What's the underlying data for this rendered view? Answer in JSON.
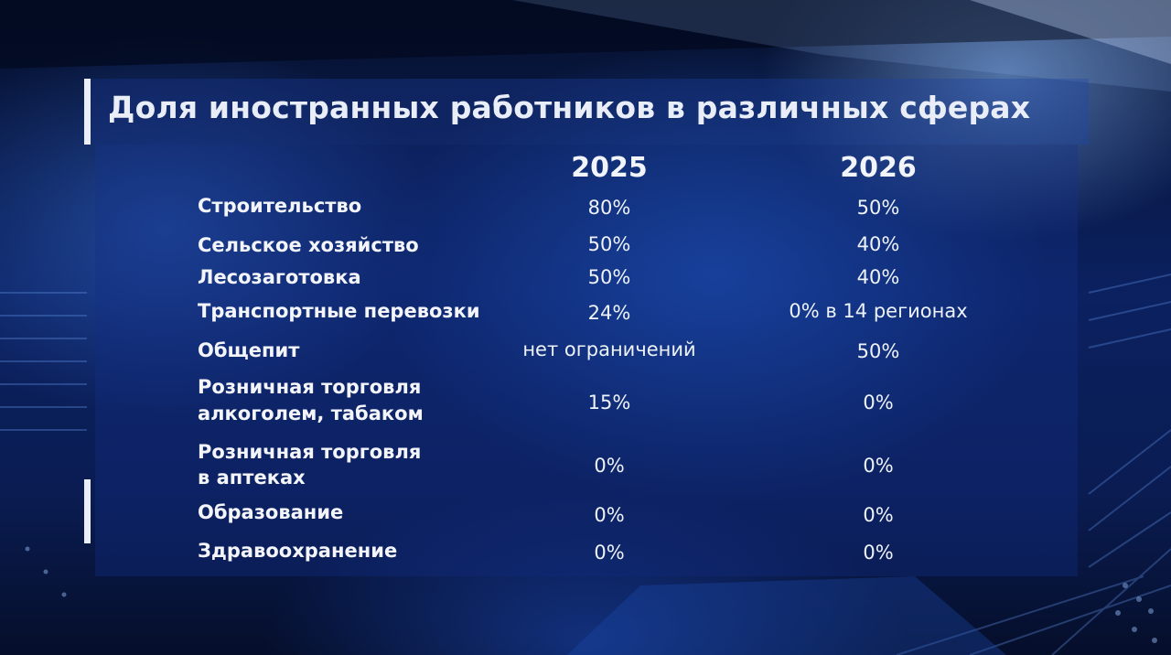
{
  "title": "Доля иностранных работников в различных сферах",
  "columns": [
    "2025",
    "2026"
  ],
  "rows": [
    {
      "label": "Строительство",
      "v2025": "80%",
      "v2026": "50%"
    },
    {
      "label": "Сельское хозяйство",
      "v2025": "50%",
      "v2026": "40%"
    },
    {
      "label": "Лесозаготовка",
      "v2025": "50%",
      "v2026": "40%"
    },
    {
      "label": "Транспортные перевозки",
      "v2025": "24%",
      "v2026": "0% в 14 регионах"
    },
    {
      "label": "Общепит",
      "v2025": "нет ограничений",
      "v2026": "50%"
    },
    {
      "label_lines": [
        "Розничная торговля",
        "алкоголем,  табаком"
      ],
      "v2025": "15%",
      "v2026": "0%"
    },
    {
      "label_lines": [
        "Розничная торговля",
        "в аптеках"
      ],
      "v2025": "0%",
      "v2026": "0%"
    },
    {
      "label": "Образование",
      "v2025": "0%",
      "v2026": "0%"
    },
    {
      "label": "Здравоохранение",
      "v2025": "0%",
      "v2026": "0%"
    }
  ],
  "colors": {
    "background_dark": "#06112e",
    "background_blue": "#0b2160",
    "text": "#f1f4fa",
    "accent_bar": "#e9eef8"
  }
}
